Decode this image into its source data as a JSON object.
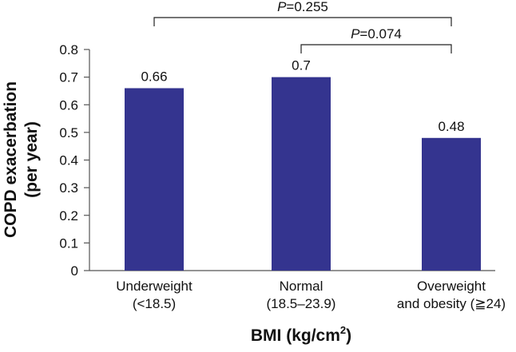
{
  "chart_data": {
    "type": "bar",
    "categories": [
      [
        "Underweight",
        "(<18.5)"
      ],
      [
        "Normal",
        "(18.5–23.9)"
      ],
      [
        "Overweight",
        "and obesity (≧24)"
      ]
    ],
    "values": [
      0.66,
      0.7,
      0.48
    ],
    "data_labels": [
      "0.66",
      "0.7",
      "0.48"
    ],
    "yticks": [
      "0",
      "0.1",
      "0.2",
      "0.3",
      "0.4",
      "0.5",
      "0.6",
      "0.7",
      "0.8"
    ],
    "ylim": [
      0,
      0.8
    ],
    "ylabel": [
      "COPD exacerbation",
      "(per year)"
    ],
    "xlabel": {
      "main": "BMI (kg/cm",
      "sup": "2",
      "close": ")"
    },
    "bar_color": "#34348f",
    "grid": false,
    "comparisons": [
      {
        "from": 0,
        "to": 2,
        "p_italic": "P",
        "p_value": "=0.255"
      },
      {
        "from": 1,
        "to": 2,
        "p_italic": "P",
        "p_value": "=0.074"
      }
    ]
  }
}
